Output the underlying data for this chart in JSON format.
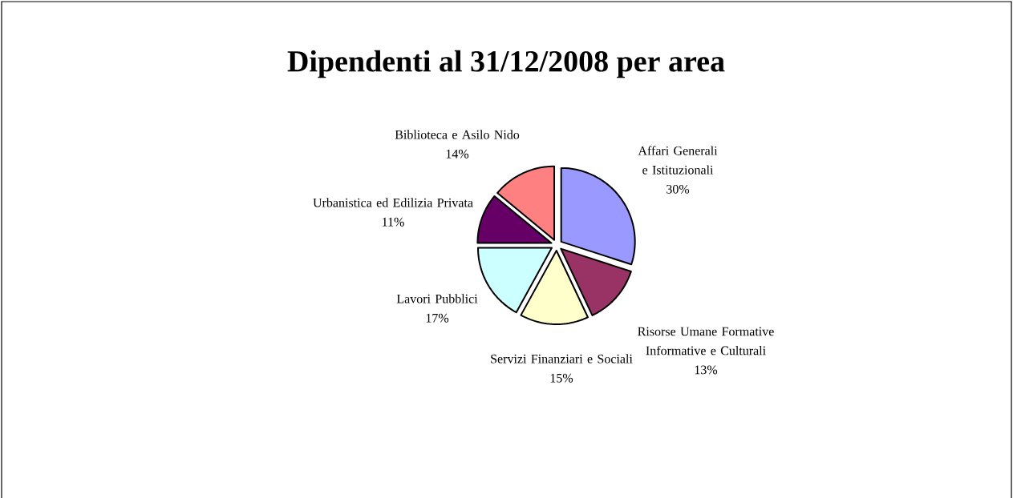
{
  "chart_data": {
    "type": "pie",
    "title": "Dipendenti al 31/12/2008 per area",
    "categories": [
      "Affari Generali e Istituzionali",
      "Risorse Umane Formative Informative e Culturali",
      "Servizi Finanziari e Sociali",
      "Lavori Pubblici",
      "Urbanistica ed Edilizia Privata",
      "Biblioteca e Asilo Nido"
    ],
    "values": [
      30,
      13,
      15,
      17,
      11,
      14
    ],
    "value_labels": [
      "30%",
      "13%",
      "15%",
      "17%",
      "11%",
      "14%"
    ],
    "colors": [
      "#9999ff",
      "#993366",
      "#ffffcc",
      "#ccffff",
      "#660066",
      "#ff8080"
    ]
  }
}
